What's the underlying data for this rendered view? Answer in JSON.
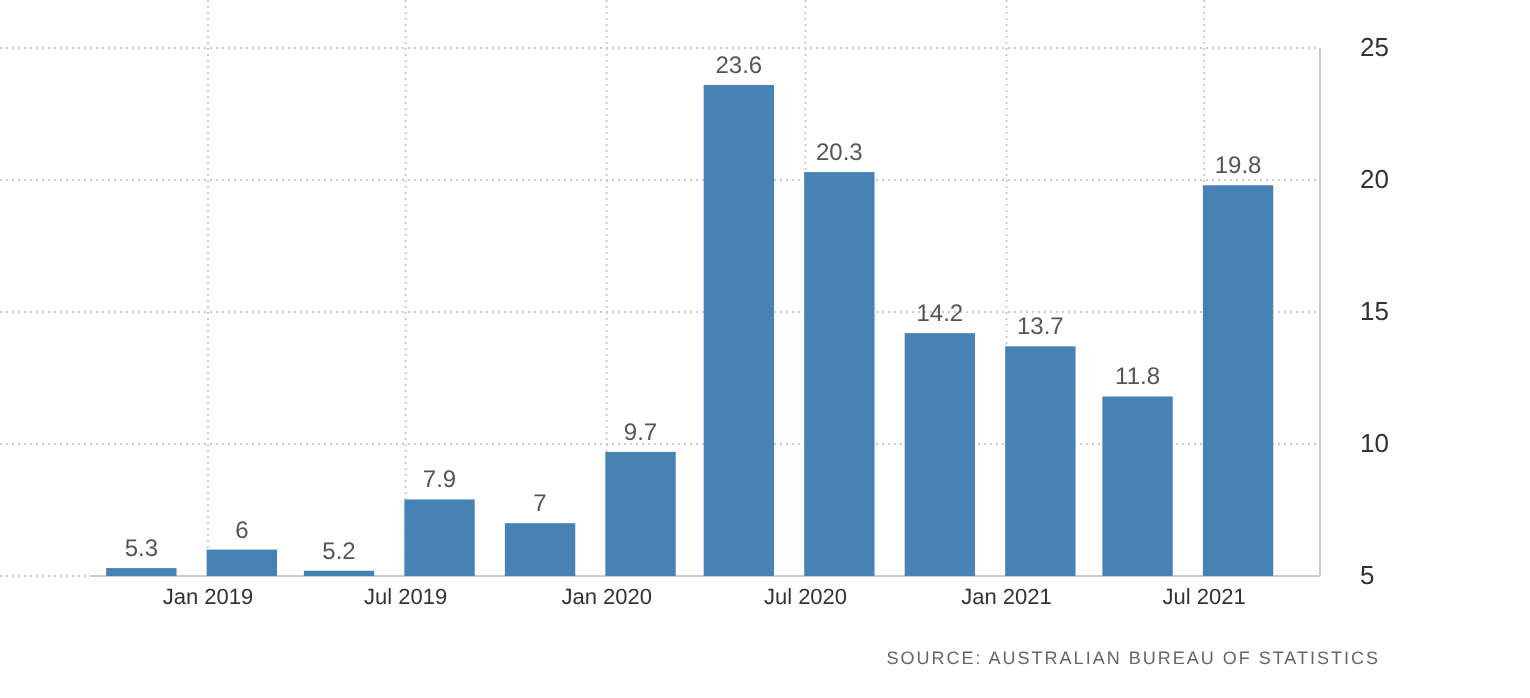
{
  "chart_data": {
    "type": "bar",
    "x": [
      "2018-11",
      "2019-02",
      "2019-05",
      "2019-08",
      "2019-11",
      "2020-02",
      "2020-05",
      "2020-08",
      "2020-11",
      "2021-02",
      "2021-05",
      "2021-08"
    ],
    "series": [
      {
        "color": "#4682b4",
        "values": [
          5.3,
          6,
          5.2,
          7.9,
          7,
          9.7,
          23.6,
          20.3,
          14.2,
          13.7,
          11.8,
          19.8
        ]
      }
    ],
    "data_labels": true,
    "xlim": [
      "2018-09-15",
      "2021-10-15"
    ],
    "xticks": [
      {
        "value": "2019-01",
        "label": "Jan 2019"
      },
      {
        "value": "2019-07",
        "label": "Jul 2019"
      },
      {
        "value": "2020-01",
        "label": "Jan 2020"
      },
      {
        "value": "2020-07",
        "label": "Jul 2020"
      },
      {
        "value": "2021-01",
        "label": "Jan 2021"
      },
      {
        "value": "2021-07",
        "label": "Jul 2021"
      }
    ],
    "ylim": [
      5,
      25
    ],
    "yticks": [
      5,
      10,
      15,
      20,
      25
    ],
    "grid": true,
    "annotations": [
      "SOURCE: AUSTRALIAN BUREAU OF STATISTICS"
    ]
  }
}
